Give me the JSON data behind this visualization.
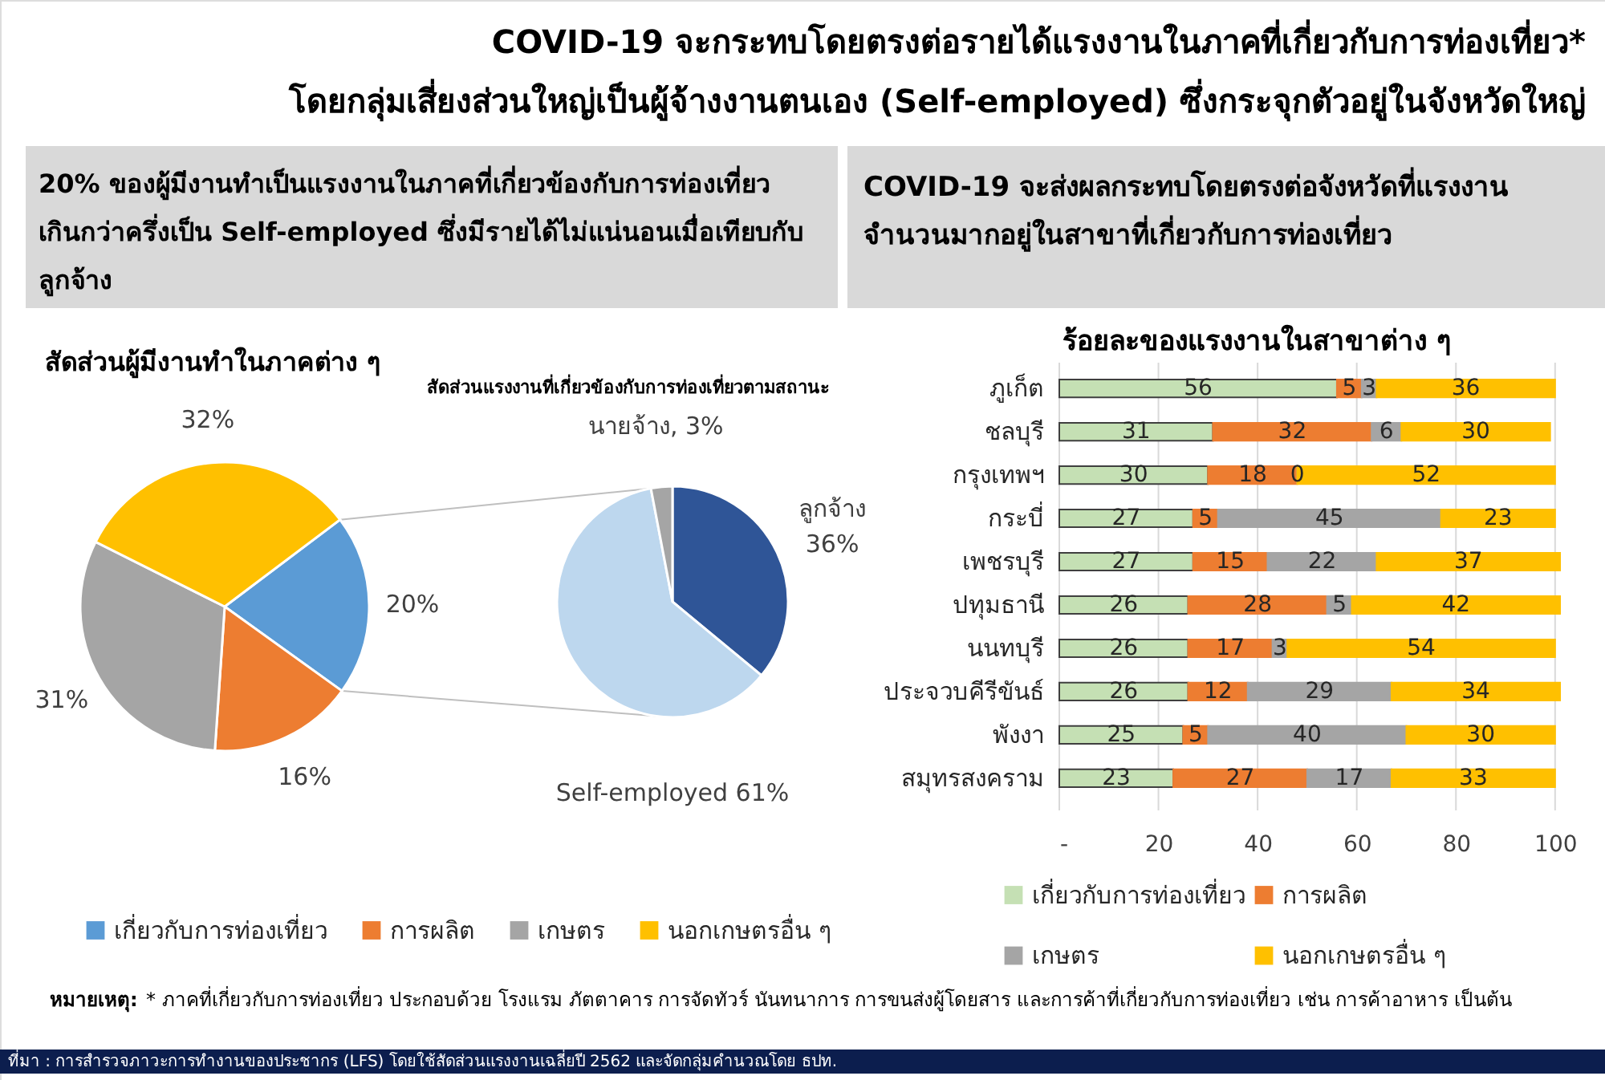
{
  "chart_data": [
    {
      "type": "pie",
      "title": "สัดส่วนผู้มีงานทำในภาคต่าง ๆ",
      "subtitle": "20% ของผู้มีงานทำเป็นแรงงานในภาคที่เกี่ยวข้องกับการท่องเที่ยว\nเกินกว่าครึ่งเป็น Self-employed ซึ่งมีรายได้ไม่แน่นอนเมื่อเทียบกับ\nลูกจ้าง",
      "categories": [
        "เกี่ยวกับการท่องเที่ยว",
        "การผลิต",
        "เกษตร",
        "นอกเกษตรอื่น ๆ"
      ],
      "values": [
        20,
        16,
        31,
        32
      ],
      "colors": [
        "#5b9bd5",
        "#ed7d31",
        "#a5a5a5",
        "#ffc000"
      ],
      "value_labels": [
        "20%",
        "16%",
        "31%",
        "32%"
      ],
      "legend": "bottom",
      "annotations": [
        "COVID-19 จะกระทบโดยตรงต่อรายได้แรงงานในภาคที่เกี่ยวกับการท่องเที่ยว*\nโดยกลุ่มเสี่ยงส่วนใหญ่เป็นผู้จ้างงานตนเอง (Self-employed) ซึ่งกระจุกตัวอยู่ในจังหวัดใหญ่",
        "หมายเหตุ:",
        "* ภาคที่เกี่ยวกับการท่องเที่ยว ประกอบด้วย โรงแรม ภัตตาคาร การจัดทัวร์ นันทนาการ การขนส่งผู้โดยสาร และการค้าที่เกี่ยวกับการท่องเที่ยว เช่น การค้าอาหาร เป็นต้น",
        "ที่มา : การสำรวจภาวะการทำงานของประชากร (LFS) โดยใช้สัดส่วนแรงงานเฉลี่ยปี 2562 และจัดกลุ่มคำนวณโดย ธปท."
      ]
    },
    {
      "type": "pie",
      "title": "สัดส่วนแรงงานที่เกี่ยวข้องกับการท่องเที่ยวตามสถานะ",
      "categories": [
        null,
        null,
        null
      ],
      "values": [
        36,
        61,
        3
      ],
      "colors": [
        "#2f5597",
        "#bdd7ee",
        "#a5a5a5"
      ],
      "value_labels": [
        "ลูกจ้าง\n36%",
        "Self-employed 61%",
        "นายจ้าง, 3%"
      ]
    },
    {
      "type": "bar",
      "orientation": "horizontal",
      "stacked": true,
      "title": "ร้อยละของแรงงานในสาขาต่าง ๆ",
      "subtitle": "COVID-19 จะส่งผลกระทบโดยตรงต่อจังหวัดที่แรงงาน\nจำนวนมากอยู่ในสาขาที่เกี่ยวกับการท่องเที่ยว",
      "categories": [
        "ภูเก็ต",
        "ชลบุรี",
        "กรุงเทพฯ",
        "กระบี่",
        "เพชรบุรี",
        "ปทุมธานี",
        "นนทบุรี",
        "ประจวบคีรีขันธ์",
        "พังงา",
        "สมุทรสงคราม"
      ],
      "series": [
        {
          "name": "เกี่ยวกับการท่องเที่ยว",
          "color": "#c5e0b4",
          "values": [
            56,
            31,
            30,
            27,
            27,
            26,
            26,
            26,
            25,
            23
          ]
        },
        {
          "name": "การผลิต",
          "color": "#ed7d31",
          "values": [
            5,
            32,
            18,
            5,
            15,
            28,
            17,
            12,
            5,
            27
          ]
        },
        {
          "name": "เกษตร",
          "color": "#a5a5a5",
          "values": [
            3,
            6,
            0,
            45,
            22,
            5,
            3,
            29,
            40,
            17
          ]
        },
        {
          "name": "นอกเกษตรอื่น ๆ",
          "color": "#ffc000",
          "values": [
            36,
            30,
            52,
            23,
            37,
            42,
            54,
            34,
            30,
            33
          ]
        }
      ],
      "xlim": [
        0,
        101
      ],
      "xticks": [
        {
          "value": 0,
          "label": "-"
        },
        20,
        40,
        60,
        80,
        100
      ],
      "grid": "x",
      "legend": "bottom",
      "data_labels": true
    }
  ]
}
